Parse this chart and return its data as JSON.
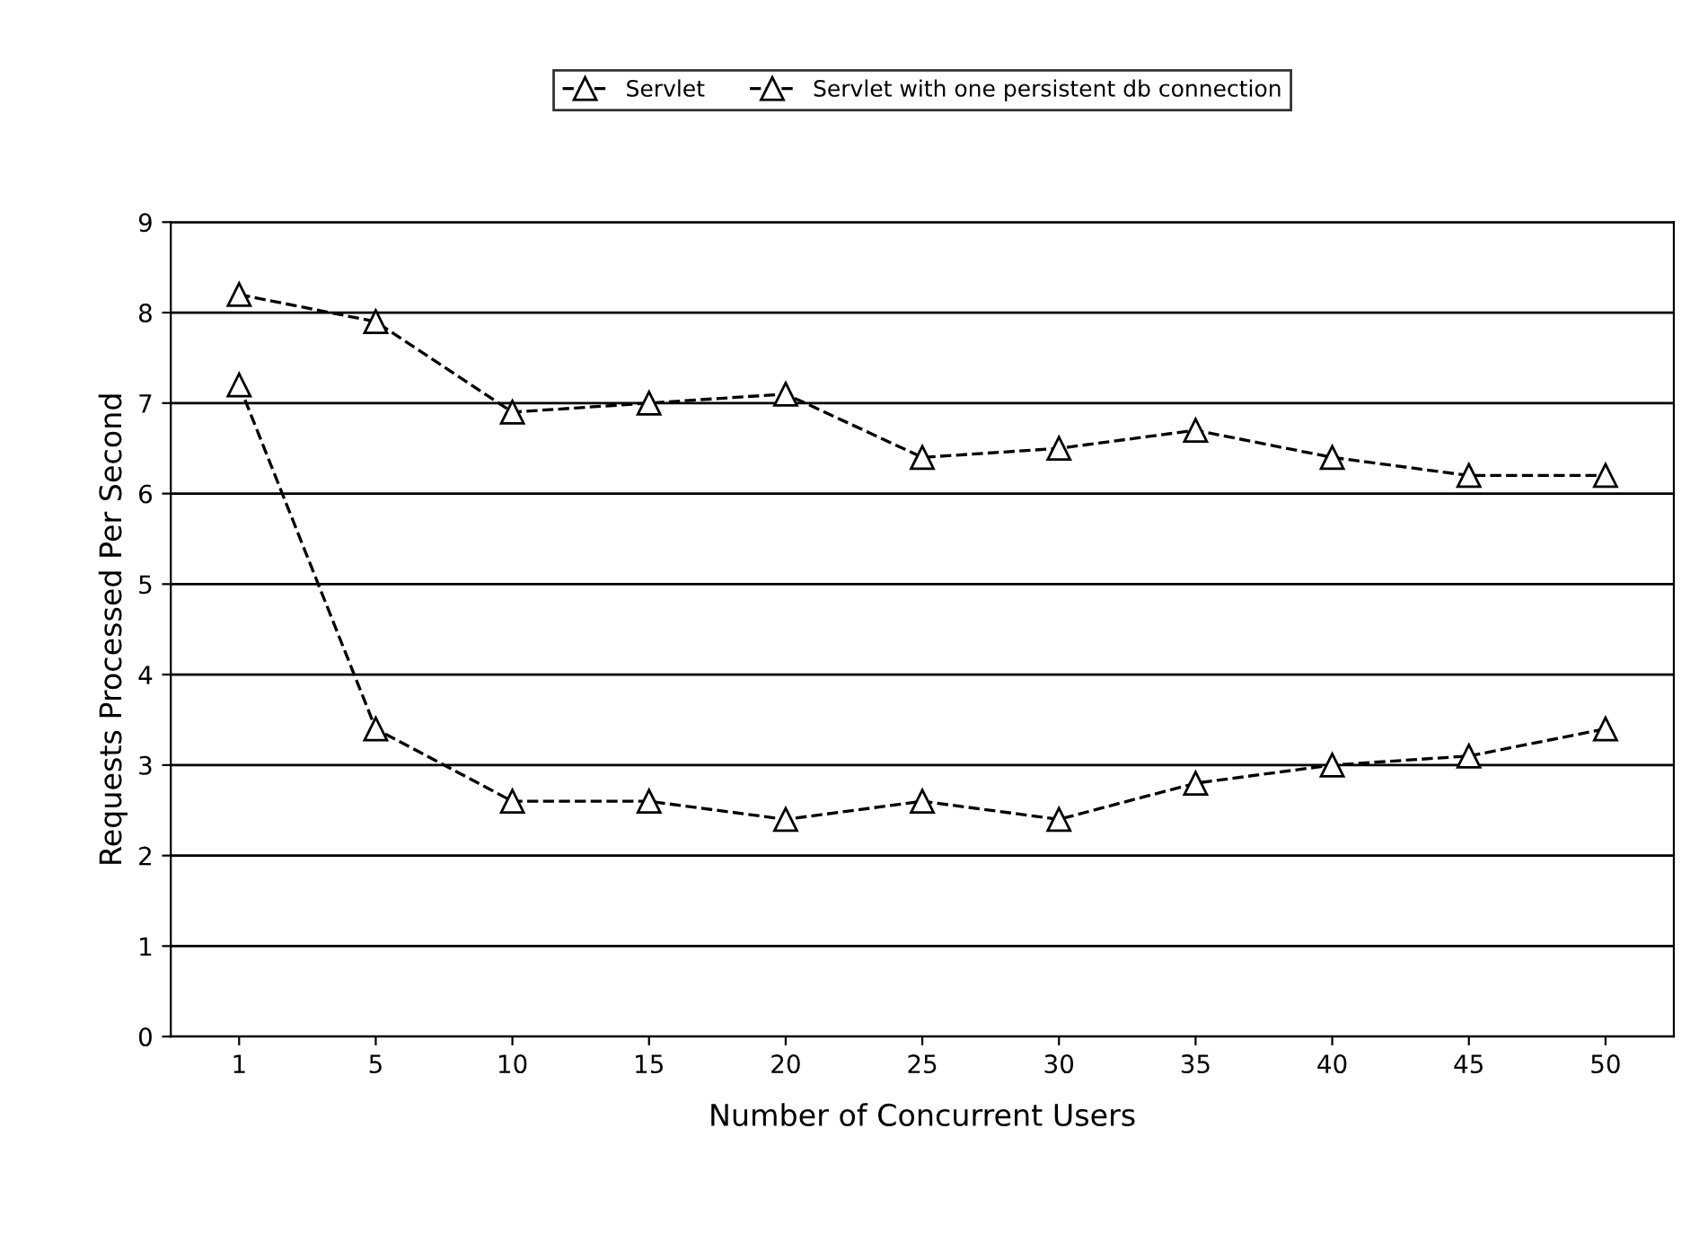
{
  "chart_data": {
    "type": "line",
    "xlabel": "Number of Concurrent Users",
    "ylabel": "Requests Processed Per Second",
    "categories": [
      "1",
      "5",
      "10",
      "15",
      "20",
      "25",
      "30",
      "35",
      "40",
      "45",
      "50"
    ],
    "series": [
      {
        "name": "Servlet",
        "color": "#000000",
        "values": [
          7.2,
          3.4,
          2.6,
          2.6,
          2.4,
          2.6,
          2.4,
          2.8,
          3.0,
          3.1,
          3.4
        ]
      },
      {
        "name": "Servlet with one persistent db connection",
        "color": "#000000",
        "values": [
          8.2,
          7.9,
          6.9,
          7.0,
          7.1,
          6.4,
          6.5,
          6.7,
          6.4,
          6.2,
          6.2
        ]
      }
    ],
    "ylim": [
      0,
      9
    ],
    "yticks": [
      0,
      1,
      2,
      3,
      4,
      5,
      6,
      7,
      8,
      9
    ],
    "grid": "y",
    "legend": "top",
    "marker": "triangle",
    "line_style": "dashed"
  }
}
